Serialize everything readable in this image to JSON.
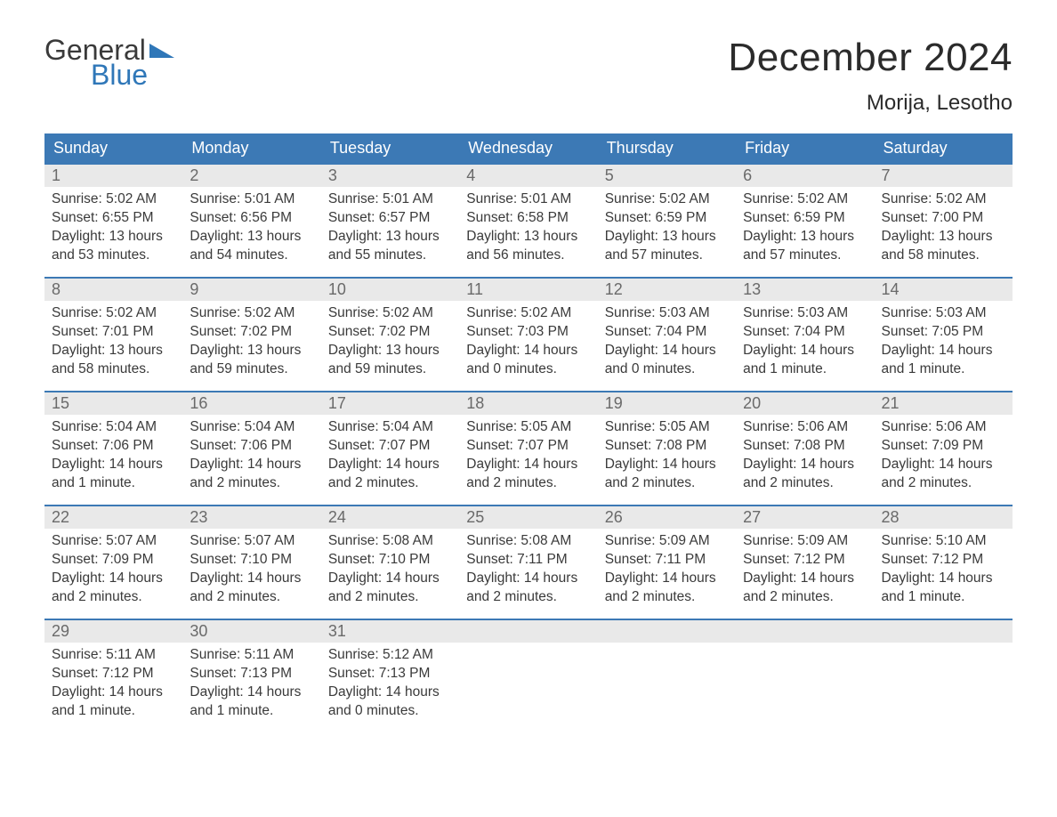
{
  "logo": {
    "line1": "General",
    "line2": "Blue"
  },
  "title": "December 2024",
  "location": "Morija, Lesotho",
  "colors": {
    "header_bg": "#3c79b5",
    "header_text": "#ffffff",
    "daynum_bg": "#e9e9e9",
    "daynum_text": "#6a6a6a",
    "body_text": "#3a3a3a",
    "row_border": "#3c79b5",
    "logo_accent": "#2f77b8"
  },
  "typography": {
    "title_fontsize": 44,
    "location_fontsize": 24,
    "header_fontsize": 18,
    "daynum_fontsize": 18,
    "body_fontsize": 15.5
  },
  "calendar": {
    "columns": [
      "Sunday",
      "Monday",
      "Tuesday",
      "Wednesday",
      "Thursday",
      "Friday",
      "Saturday"
    ],
    "weeks": [
      [
        {
          "day": "1",
          "sunrise": "Sunrise: 5:02 AM",
          "sunset": "Sunset: 6:55 PM",
          "dl1": "Daylight: 13 hours",
          "dl2": "and 53 minutes."
        },
        {
          "day": "2",
          "sunrise": "Sunrise: 5:01 AM",
          "sunset": "Sunset: 6:56 PM",
          "dl1": "Daylight: 13 hours",
          "dl2": "and 54 minutes."
        },
        {
          "day": "3",
          "sunrise": "Sunrise: 5:01 AM",
          "sunset": "Sunset: 6:57 PM",
          "dl1": "Daylight: 13 hours",
          "dl2": "and 55 minutes."
        },
        {
          "day": "4",
          "sunrise": "Sunrise: 5:01 AM",
          "sunset": "Sunset: 6:58 PM",
          "dl1": "Daylight: 13 hours",
          "dl2": "and 56 minutes."
        },
        {
          "day": "5",
          "sunrise": "Sunrise: 5:02 AM",
          "sunset": "Sunset: 6:59 PM",
          "dl1": "Daylight: 13 hours",
          "dl2": "and 57 minutes."
        },
        {
          "day": "6",
          "sunrise": "Sunrise: 5:02 AM",
          "sunset": "Sunset: 6:59 PM",
          "dl1": "Daylight: 13 hours",
          "dl2": "and 57 minutes."
        },
        {
          "day": "7",
          "sunrise": "Sunrise: 5:02 AM",
          "sunset": "Sunset: 7:00 PM",
          "dl1": "Daylight: 13 hours",
          "dl2": "and 58 minutes."
        }
      ],
      [
        {
          "day": "8",
          "sunrise": "Sunrise: 5:02 AM",
          "sunset": "Sunset: 7:01 PM",
          "dl1": "Daylight: 13 hours",
          "dl2": "and 58 minutes."
        },
        {
          "day": "9",
          "sunrise": "Sunrise: 5:02 AM",
          "sunset": "Sunset: 7:02 PM",
          "dl1": "Daylight: 13 hours",
          "dl2": "and 59 minutes."
        },
        {
          "day": "10",
          "sunrise": "Sunrise: 5:02 AM",
          "sunset": "Sunset: 7:02 PM",
          "dl1": "Daylight: 13 hours",
          "dl2": "and 59 minutes."
        },
        {
          "day": "11",
          "sunrise": "Sunrise: 5:02 AM",
          "sunset": "Sunset: 7:03 PM",
          "dl1": "Daylight: 14 hours",
          "dl2": "and 0 minutes."
        },
        {
          "day": "12",
          "sunrise": "Sunrise: 5:03 AM",
          "sunset": "Sunset: 7:04 PM",
          "dl1": "Daylight: 14 hours",
          "dl2": "and 0 minutes."
        },
        {
          "day": "13",
          "sunrise": "Sunrise: 5:03 AM",
          "sunset": "Sunset: 7:04 PM",
          "dl1": "Daylight: 14 hours",
          "dl2": "and 1 minute."
        },
        {
          "day": "14",
          "sunrise": "Sunrise: 5:03 AM",
          "sunset": "Sunset: 7:05 PM",
          "dl1": "Daylight: 14 hours",
          "dl2": "and 1 minute."
        }
      ],
      [
        {
          "day": "15",
          "sunrise": "Sunrise: 5:04 AM",
          "sunset": "Sunset: 7:06 PM",
          "dl1": "Daylight: 14 hours",
          "dl2": "and 1 minute."
        },
        {
          "day": "16",
          "sunrise": "Sunrise: 5:04 AM",
          "sunset": "Sunset: 7:06 PM",
          "dl1": "Daylight: 14 hours",
          "dl2": "and 2 minutes."
        },
        {
          "day": "17",
          "sunrise": "Sunrise: 5:04 AM",
          "sunset": "Sunset: 7:07 PM",
          "dl1": "Daylight: 14 hours",
          "dl2": "and 2 minutes."
        },
        {
          "day": "18",
          "sunrise": "Sunrise: 5:05 AM",
          "sunset": "Sunset: 7:07 PM",
          "dl1": "Daylight: 14 hours",
          "dl2": "and 2 minutes."
        },
        {
          "day": "19",
          "sunrise": "Sunrise: 5:05 AM",
          "sunset": "Sunset: 7:08 PM",
          "dl1": "Daylight: 14 hours",
          "dl2": "and 2 minutes."
        },
        {
          "day": "20",
          "sunrise": "Sunrise: 5:06 AM",
          "sunset": "Sunset: 7:08 PM",
          "dl1": "Daylight: 14 hours",
          "dl2": "and 2 minutes."
        },
        {
          "day": "21",
          "sunrise": "Sunrise: 5:06 AM",
          "sunset": "Sunset: 7:09 PM",
          "dl1": "Daylight: 14 hours",
          "dl2": "and 2 minutes."
        }
      ],
      [
        {
          "day": "22",
          "sunrise": "Sunrise: 5:07 AM",
          "sunset": "Sunset: 7:09 PM",
          "dl1": "Daylight: 14 hours",
          "dl2": "and 2 minutes."
        },
        {
          "day": "23",
          "sunrise": "Sunrise: 5:07 AM",
          "sunset": "Sunset: 7:10 PM",
          "dl1": "Daylight: 14 hours",
          "dl2": "and 2 minutes."
        },
        {
          "day": "24",
          "sunrise": "Sunrise: 5:08 AM",
          "sunset": "Sunset: 7:10 PM",
          "dl1": "Daylight: 14 hours",
          "dl2": "and 2 minutes."
        },
        {
          "day": "25",
          "sunrise": "Sunrise: 5:08 AM",
          "sunset": "Sunset: 7:11 PM",
          "dl1": "Daylight: 14 hours",
          "dl2": "and 2 minutes."
        },
        {
          "day": "26",
          "sunrise": "Sunrise: 5:09 AM",
          "sunset": "Sunset: 7:11 PM",
          "dl1": "Daylight: 14 hours",
          "dl2": "and 2 minutes."
        },
        {
          "day": "27",
          "sunrise": "Sunrise: 5:09 AM",
          "sunset": "Sunset: 7:12 PM",
          "dl1": "Daylight: 14 hours",
          "dl2": "and 2 minutes."
        },
        {
          "day": "28",
          "sunrise": "Sunrise: 5:10 AM",
          "sunset": "Sunset: 7:12 PM",
          "dl1": "Daylight: 14 hours",
          "dl2": "and 1 minute."
        }
      ],
      [
        {
          "day": "29",
          "sunrise": "Sunrise: 5:11 AM",
          "sunset": "Sunset: 7:12 PM",
          "dl1": "Daylight: 14 hours",
          "dl2": "and 1 minute."
        },
        {
          "day": "30",
          "sunrise": "Sunrise: 5:11 AM",
          "sunset": "Sunset: 7:13 PM",
          "dl1": "Daylight: 14 hours",
          "dl2": "and 1 minute."
        },
        {
          "day": "31",
          "sunrise": "Sunrise: 5:12 AM",
          "sunset": "Sunset: 7:13 PM",
          "dl1": "Daylight: 14 hours",
          "dl2": "and 0 minutes."
        },
        {
          "day": "",
          "sunrise": "",
          "sunset": "",
          "dl1": "",
          "dl2": ""
        },
        {
          "day": "",
          "sunrise": "",
          "sunset": "",
          "dl1": "",
          "dl2": ""
        },
        {
          "day": "",
          "sunrise": "",
          "sunset": "",
          "dl1": "",
          "dl2": ""
        },
        {
          "day": "",
          "sunrise": "",
          "sunset": "",
          "dl1": "",
          "dl2": ""
        }
      ]
    ]
  }
}
